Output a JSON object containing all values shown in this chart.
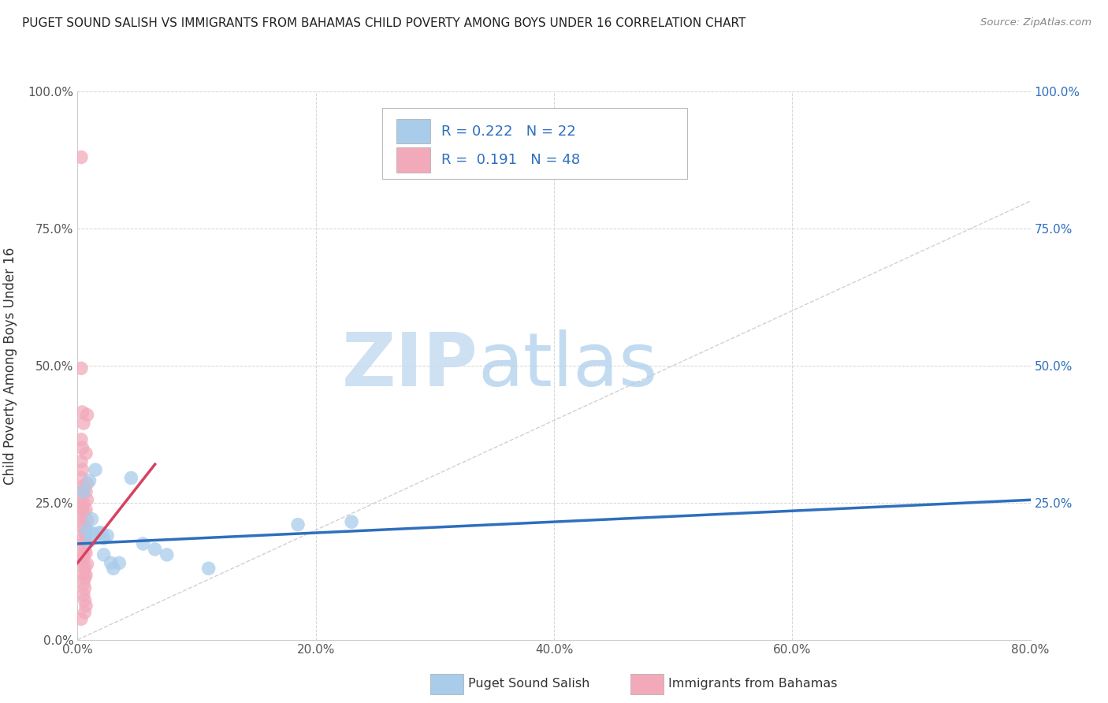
{
  "title": "PUGET SOUND SALISH VS IMMIGRANTS FROM BAHAMAS CHILD POVERTY AMONG BOYS UNDER 16 CORRELATION CHART",
  "source": "Source: ZipAtlas.com",
  "ylabel": "Child Poverty Among Boys Under 16",
  "xlim": [
    0.0,
    0.8
  ],
  "ylim": [
    0.0,
    1.0
  ],
  "legend_r1": "0.222",
  "legend_n1": "22",
  "legend_r2": "0.191",
  "legend_n2": "48",
  "color_blue": "#A8CCEA",
  "color_pink": "#F2AABB",
  "trendline_blue": "#2E6FBD",
  "trendline_pink": "#D94060",
  "trendline_diag": "#CCCCCC",
  "watermark_zip": "ZIP",
  "watermark_atlas": "atlas",
  "blue_points": [
    [
      0.005,
      0.27
    ],
    [
      0.01,
      0.29
    ],
    [
      0.008,
      0.2
    ],
    [
      0.012,
      0.22
    ],
    [
      0.015,
      0.31
    ],
    [
      0.01,
      0.18
    ],
    [
      0.012,
      0.195
    ],
    [
      0.018,
      0.195
    ],
    [
      0.02,
      0.195
    ],
    [
      0.022,
      0.185
    ],
    [
      0.025,
      0.19
    ],
    [
      0.022,
      0.155
    ],
    [
      0.028,
      0.14
    ],
    [
      0.03,
      0.13
    ],
    [
      0.035,
      0.14
    ],
    [
      0.045,
      0.295
    ],
    [
      0.055,
      0.175
    ],
    [
      0.065,
      0.165
    ],
    [
      0.075,
      0.155
    ],
    [
      0.11,
      0.13
    ],
    [
      0.185,
      0.21
    ],
    [
      0.23,
      0.215
    ]
  ],
  "pink_points": [
    [
      0.003,
      0.88
    ],
    [
      0.003,
      0.495
    ],
    [
      0.004,
      0.415
    ],
    [
      0.005,
      0.395
    ],
    [
      0.003,
      0.365
    ],
    [
      0.004,
      0.35
    ],
    [
      0.003,
      0.325
    ],
    [
      0.004,
      0.31
    ],
    [
      0.003,
      0.295
    ],
    [
      0.005,
      0.28
    ],
    [
      0.004,
      0.27
    ],
    [
      0.003,
      0.26
    ],
    [
      0.005,
      0.25
    ],
    [
      0.004,
      0.24
    ],
    [
      0.005,
      0.235
    ],
    [
      0.003,
      0.225
    ],
    [
      0.004,
      0.215
    ],
    [
      0.005,
      0.205
    ],
    [
      0.006,
      0.195
    ],
    [
      0.005,
      0.185
    ],
    [
      0.004,
      0.175
    ],
    [
      0.006,
      0.165
    ],
    [
      0.005,
      0.155
    ],
    [
      0.004,
      0.148
    ],
    [
      0.005,
      0.14
    ],
    [
      0.006,
      0.13
    ],
    [
      0.005,
      0.12
    ],
    [
      0.006,
      0.112
    ],
    [
      0.005,
      0.102
    ],
    [
      0.006,
      0.094
    ],
    [
      0.005,
      0.082
    ],
    [
      0.006,
      0.072
    ],
    [
      0.007,
      0.062
    ],
    [
      0.006,
      0.05
    ],
    [
      0.007,
      0.195
    ],
    [
      0.008,
      0.41
    ],
    [
      0.007,
      0.34
    ],
    [
      0.008,
      0.285
    ],
    [
      0.007,
      0.27
    ],
    [
      0.008,
      0.255
    ],
    [
      0.007,
      0.237
    ],
    [
      0.008,
      0.218
    ],
    [
      0.007,
      0.198
    ],
    [
      0.008,
      0.178
    ],
    [
      0.007,
      0.158
    ],
    [
      0.008,
      0.138
    ],
    [
      0.007,
      0.118
    ],
    [
      0.003,
      0.038
    ]
  ]
}
